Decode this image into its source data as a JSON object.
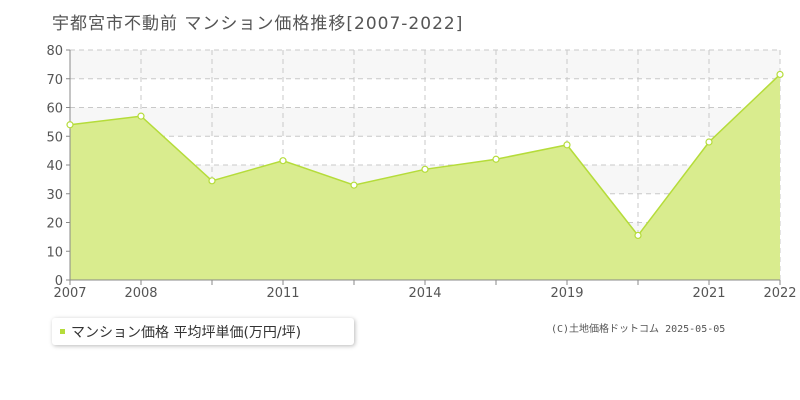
{
  "title": "宇都宮市不動前 マンション価格推移[2007-2022]",
  "chart_data": {
    "type": "area",
    "title": "宇都宮市不動前 マンション価格推移[2007-2022]",
    "xlabel": "",
    "ylabel": "",
    "x_tick_labels": [
      "2007",
      "2008",
      "2011",
      "2014",
      "2019",
      "2021",
      "2022"
    ],
    "y_ticks": [
      0,
      10,
      20,
      30,
      40,
      50,
      60,
      70,
      80
    ],
    "ylim": [
      0,
      80
    ],
    "grid": true,
    "legend_placement": "bottom-left",
    "series": [
      {
        "name": "マンション価格 平均坪単価(万円/坪)",
        "values": [
          54,
          57,
          34.5,
          41.5,
          33,
          38.5,
          42,
          47,
          15.5,
          48,
          71.5
        ]
      }
    ]
  },
  "legend": {
    "label": "マンション価格 平均坪単価(万円/坪)"
  },
  "copyright": "(C)土地価格ドットコム 2025-05-05",
  "colors": {
    "fill": "#d9ec8e",
    "line": "#b5dc3a",
    "marker_fill": "#ffffff",
    "grid": "#c8c8c8",
    "axis": "#888888",
    "band": "#f7f7f7",
    "legend_marker": "#b5dc3a"
  }
}
